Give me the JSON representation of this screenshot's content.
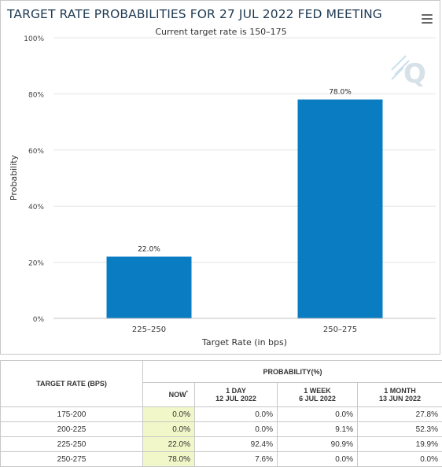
{
  "chart": {
    "title": "TARGET RATE PROBABILITIES FOR 27 JUL 2022 FED MEETING",
    "subtitle": "Current target rate is 150–175",
    "bar_color": "#0a7cc1"
  },
  "chart_data": {
    "type": "bar",
    "categories": [
      "225–250",
      "250–275"
    ],
    "values": [
      22.0,
      78.0
    ],
    "data_labels": [
      "22.0%",
      "78.0%"
    ],
    "ylim": [
      0,
      100
    ],
    "yticks": [
      0,
      20,
      40,
      60,
      80,
      100
    ],
    "ytick_labels": [
      "0%",
      "20%",
      "40%",
      "60%",
      "80%",
      "100%"
    ],
    "xlabel": "Target Rate (in bps)",
    "ylabel": "Probability",
    "grid": true
  },
  "table": {
    "rate_header": "TARGET RATE (BPS)",
    "prob_header": "PROBABILITY(%)",
    "now_label": "NOW",
    "now_mark": "*",
    "col_1day": "1 DAY",
    "col_1day_date": "12 JUL 2022",
    "col_1week": "1 WEEK",
    "col_1week_date": "6 JUL 2022",
    "col_1month": "1 MONTH",
    "col_1month_date": "13 JUN 2022",
    "rows": [
      {
        "rate": "175-200",
        "now": "0.0%",
        "day": "0.0%",
        "week": "0.0%",
        "month": "27.8%"
      },
      {
        "rate": "200-225",
        "now": "0.0%",
        "day": "0.0%",
        "week": "9.1%",
        "month": "52.3%"
      },
      {
        "rate": "225-250",
        "now": "22.0%",
        "day": "92.4%",
        "week": "90.9%",
        "month": "19.9%"
      },
      {
        "rate": "250-275",
        "now": "78.0%",
        "day": "7.6%",
        "week": "0.0%",
        "month": "0.0%"
      }
    ]
  }
}
